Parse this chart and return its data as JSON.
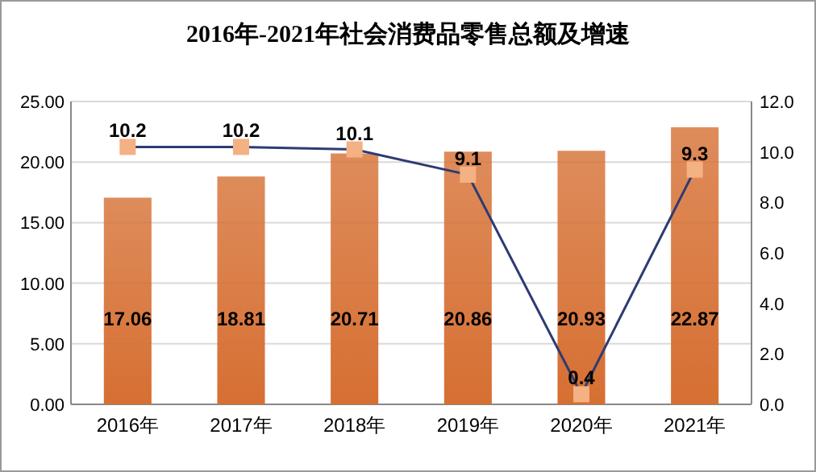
{
  "chart_data": {
    "type": "bar",
    "title": "2016年-2021年社会消费品零售总额及增速",
    "categories": [
      "2016年",
      "2017年",
      "2018年",
      "2019年",
      "2020年",
      "2021年"
    ],
    "series": [
      {
        "color": "#d66f32",
        "values": [
          17.06,
          18.81,
          20.71,
          20.86,
          20.93,
          22.87
        ]
      },
      {
        "type": "line",
        "axis": "y2",
        "color": "#2e3b73",
        "values": [
          10.2,
          10.2,
          10.1,
          9.1,
          0.4,
          9.3
        ]
      }
    ],
    "data_labels": true,
    "marker": "square",
    "grid": "y",
    "ylim": [
      0,
      25
    ],
    "yticks": [
      {
        "value": 0,
        "label": "0.00"
      },
      {
        "value": 5,
        "label": "5.00"
      },
      {
        "value": 10,
        "label": "10.00"
      },
      {
        "value": 15,
        "label": "15.00"
      },
      {
        "value": 20,
        "label": "20.00"
      },
      {
        "value": 25,
        "label": "25.00"
      }
    ],
    "y2lim": [
      0,
      12
    ],
    "y2ticks": [
      {
        "value": 0,
        "label": "0.0"
      },
      {
        "value": 2,
        "label": "2.0"
      },
      {
        "value": 4,
        "label": "4.0"
      },
      {
        "value": 6,
        "label": "6.0"
      },
      {
        "value": 8,
        "label": "8.0"
      },
      {
        "value": 10,
        "label": "10.0"
      },
      {
        "value": 12,
        "label": "12.0"
      }
    ]
  }
}
